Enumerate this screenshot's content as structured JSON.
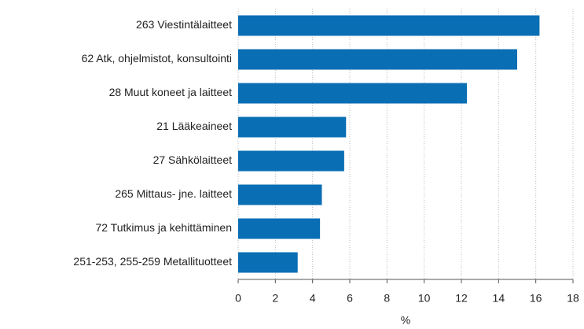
{
  "chart_data": {
    "type": "bar",
    "orientation": "horizontal",
    "categories": [
      "263 Viestintälaitteet",
      "62 Atk, ohjelmistot, konsultointi",
      "28 Muut koneet ja laitteet",
      "21 Lääkeaineet",
      "27 Sähkölaitteet",
      "265 Mittaus- jne. laitteet",
      "72 Tutkimus ja kehittäminen",
      "251-253, 255-259 Metallituotteet"
    ],
    "values": [
      16.2,
      15.0,
      12.3,
      5.8,
      5.7,
      4.5,
      4.4,
      3.2
    ],
    "color": "#0a6eb4",
    "xlabel": "%",
    "xlim": [
      0,
      18
    ],
    "xticks": [
      0,
      2,
      4,
      6,
      8,
      10,
      12,
      14,
      16,
      18
    ],
    "grid": true
  }
}
